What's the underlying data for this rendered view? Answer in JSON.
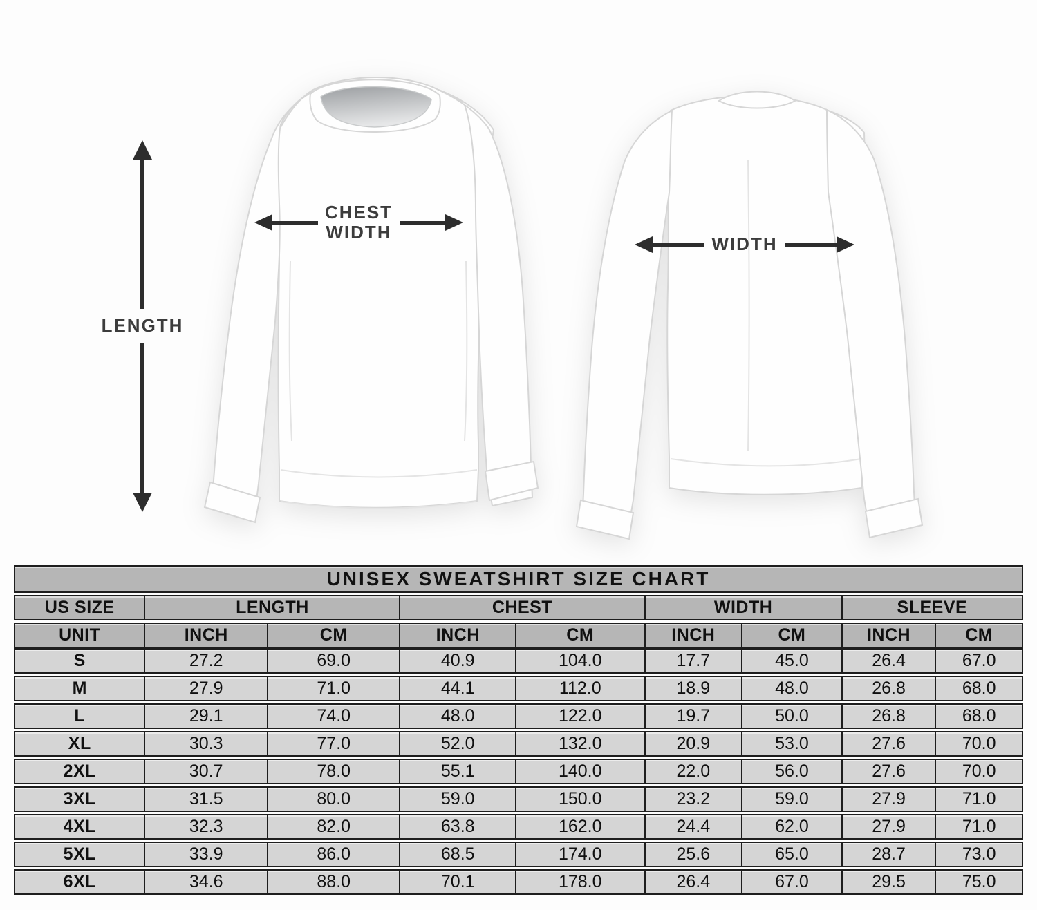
{
  "page": {
    "background": "#fdfdfd"
  },
  "diagram": {
    "length_label": "LENGTH",
    "chest_width_label_line1": "CHEST",
    "chest_width_label_line2": "WIDTH",
    "back_width_label": "WIDTH",
    "arrow_color": "#2d2d2d",
    "label_color": "#3c3c3c",
    "front_shirt": "sweatshirt-front-view",
    "back_shirt": "sweatshirt-back-view"
  },
  "chart_data": {
    "type": "table",
    "title": "UNISEX SWEATSHIRT SIZE CHART",
    "column_groups": [
      {
        "label": "US SIZE",
        "span": 1
      },
      {
        "label": "LENGTH",
        "span": 2
      },
      {
        "label": "CHEST",
        "span": 2
      },
      {
        "label": "WIDTH",
        "span": 2
      },
      {
        "label": "SLEEVE",
        "span": 2
      }
    ],
    "unit_header": [
      "UNIT",
      "INCH",
      "CM",
      "INCH",
      "CM",
      "INCH",
      "CM",
      "INCH",
      "CM"
    ],
    "rows": [
      [
        "S",
        "27.2",
        "69.0",
        "40.9",
        "104.0",
        "17.7",
        "45.0",
        "26.4",
        "67.0"
      ],
      [
        "M",
        "27.9",
        "71.0",
        "44.1",
        "112.0",
        "18.9",
        "48.0",
        "26.8",
        "68.0"
      ],
      [
        "L",
        "29.1",
        "74.0",
        "48.0",
        "122.0",
        "19.7",
        "50.0",
        "26.8",
        "68.0"
      ],
      [
        "XL",
        "30.3",
        "77.0",
        "52.0",
        "132.0",
        "20.9",
        "53.0",
        "27.6",
        "70.0"
      ],
      [
        "2XL",
        "30.7",
        "78.0",
        "55.1",
        "140.0",
        "22.0",
        "56.0",
        "27.6",
        "70.0"
      ],
      [
        "3XL",
        "31.5",
        "80.0",
        "59.0",
        "150.0",
        "23.2",
        "59.0",
        "27.9",
        "71.0"
      ],
      [
        "4XL",
        "32.3",
        "82.0",
        "63.8",
        "162.0",
        "24.4",
        "62.0",
        "27.9",
        "71.0"
      ],
      [
        "5XL",
        "33.9",
        "86.0",
        "68.5",
        "174.0",
        "25.6",
        "65.0",
        "28.7",
        "73.0"
      ],
      [
        "6XL",
        "34.6",
        "88.0",
        "70.1",
        "178.0",
        "26.4",
        "67.0",
        "29.5",
        "75.0"
      ]
    ],
    "colors": {
      "header_bg": "#b6b6b6",
      "row_bg": "#d5d5d5",
      "border": "#1e1e1e",
      "gap": "#fdfdfd"
    },
    "layout": {
      "legend_position": "none",
      "grid": "full-borders"
    }
  }
}
